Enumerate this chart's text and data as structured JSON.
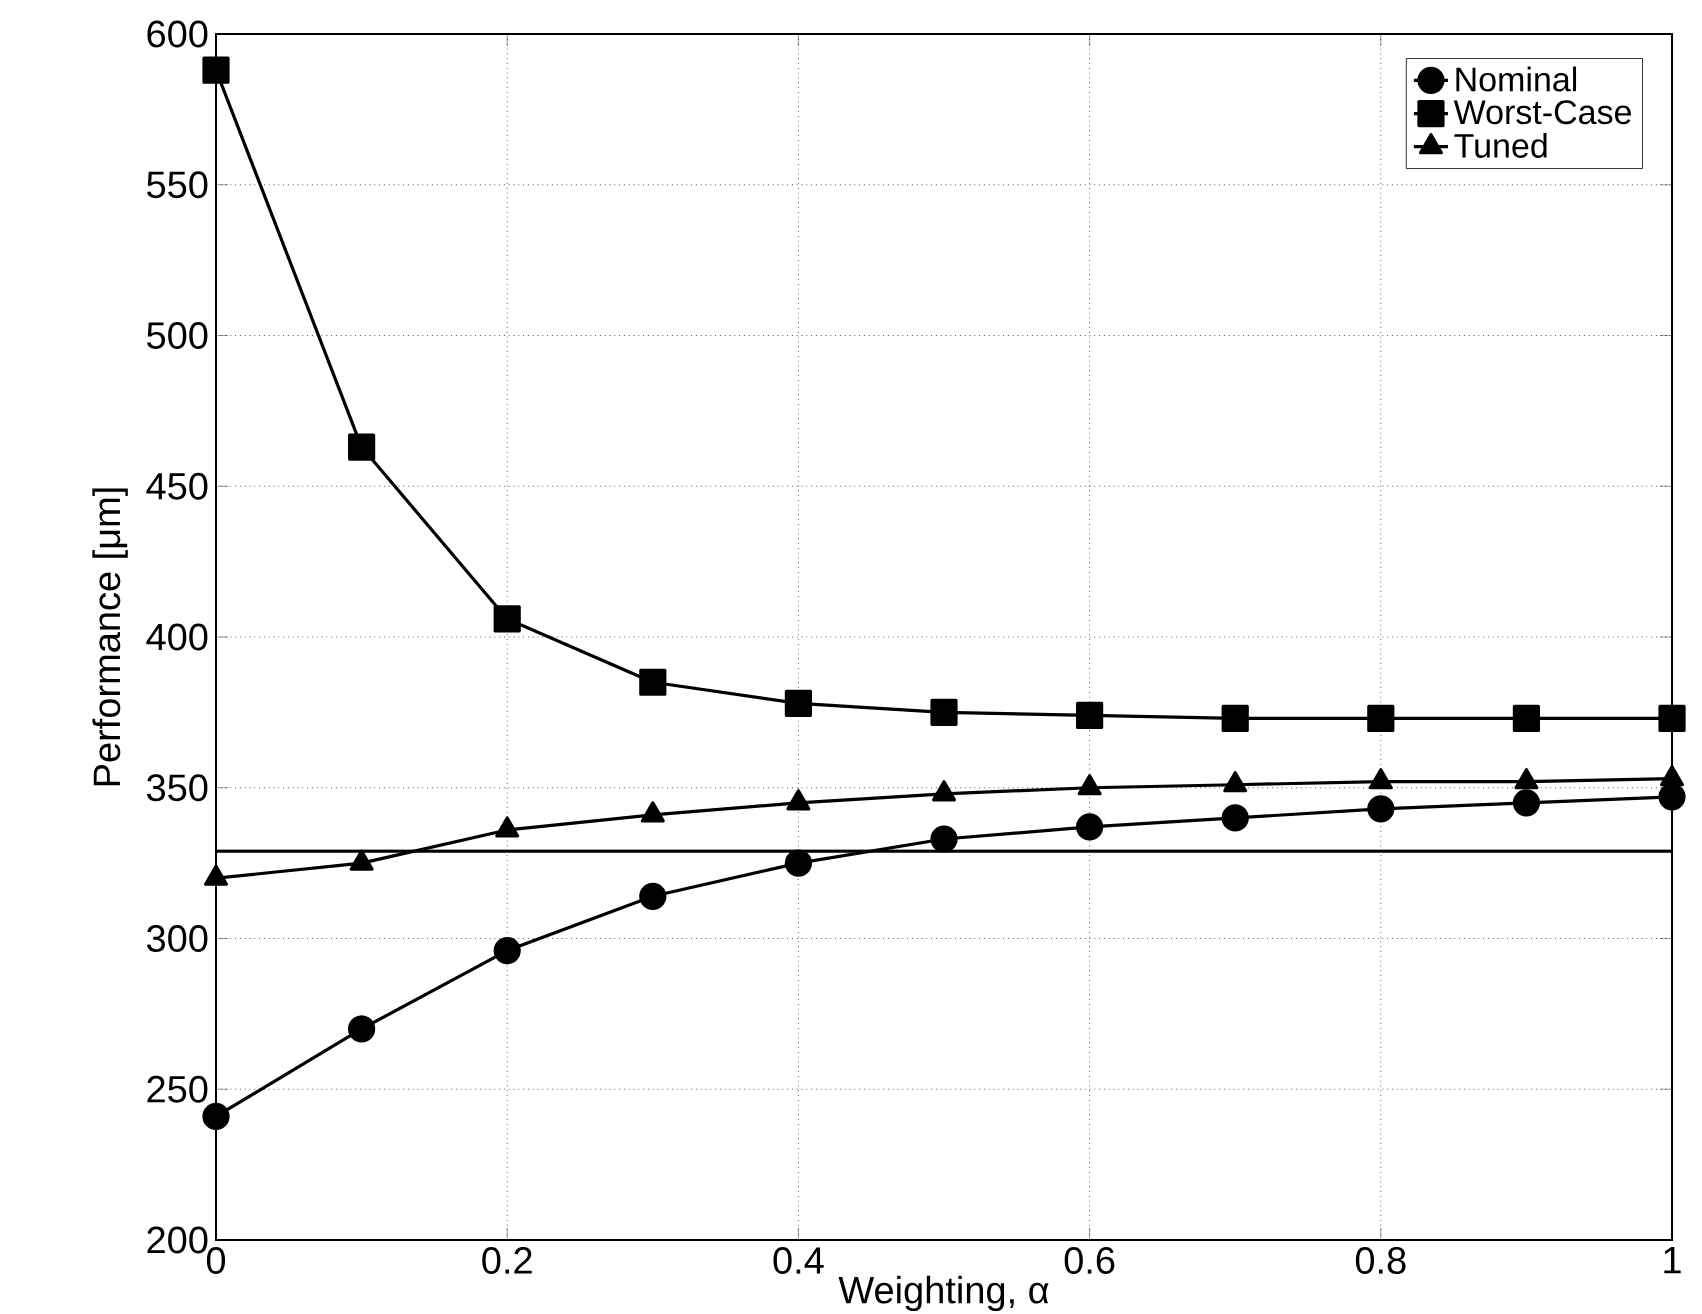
{
  "chart_data": {
    "type": "line",
    "xlabel": "Weighting, α",
    "ylabel": "Performance [μm]",
    "x": [
      0,
      0.1,
      0.2,
      0.3,
      0.4,
      0.5,
      0.6,
      0.7,
      0.8,
      0.9,
      1
    ],
    "series": [
      {
        "name": "Nominal",
        "color": "#000000",
        "marker": "circle",
        "values": [
          241,
          270,
          296,
          314,
          325,
          333,
          337,
          340,
          343,
          345,
          347
        ]
      },
      {
        "name": "Worst-Case",
        "color": "#000000",
        "marker": "square",
        "values": [
          588,
          463,
          406,
          385,
          378,
          375,
          374,
          373,
          373,
          373,
          373
        ]
      },
      {
        "name": "Tuned",
        "color": "#000000",
        "marker": "triangle",
        "values": [
          320,
          325,
          336,
          341,
          345,
          348,
          350,
          351,
          352,
          352,
          353
        ]
      }
    ],
    "ref_lines": [
      {
        "axis": "y",
        "value": 329,
        "color": "#000000",
        "line_style": "solid"
      }
    ],
    "xlim": [
      0,
      1
    ],
    "ylim": [
      200,
      600
    ],
    "xticks": [
      0,
      0.2,
      0.4,
      0.6,
      0.8,
      1
    ],
    "yticks": [
      200,
      250,
      300,
      350,
      400,
      450,
      500,
      550,
      600
    ],
    "grid": true,
    "legend": "top right",
    "line_style": "solid"
  }
}
